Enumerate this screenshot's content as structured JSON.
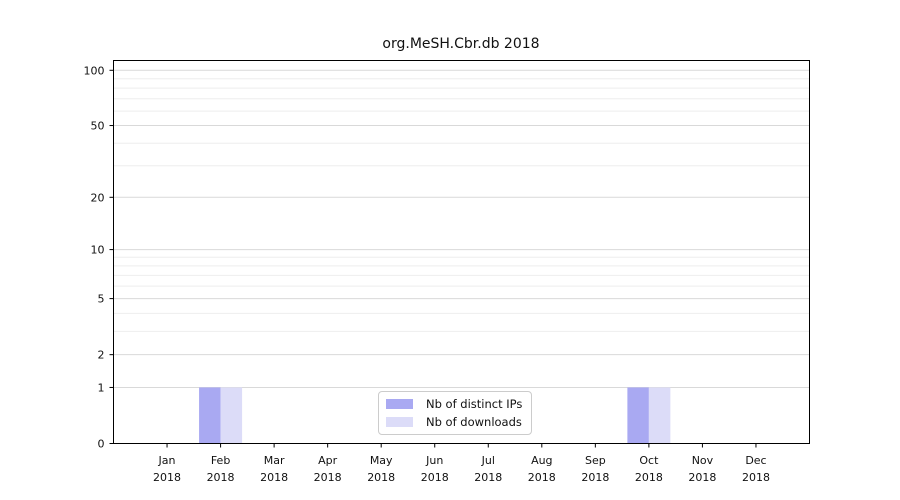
{
  "title": "org.MeSH.Cbr.db 2018",
  "chart_data": {
    "type": "bar",
    "title": "org.MeSH.Cbr.db 2018",
    "categories": [
      "Jan",
      "Feb",
      "Mar",
      "Apr",
      "May",
      "Jun",
      "Jul",
      "Aug",
      "Sep",
      "Oct",
      "Nov",
      "Dec"
    ],
    "category_year": "2018",
    "series": [
      {
        "name": "Nb of distinct IPs",
        "color": "#a9a9f2",
        "values": [
          0,
          1,
          0,
          0,
          0,
          0,
          0,
          0,
          0,
          1,
          0,
          0
        ]
      },
      {
        "name": "Nb of downloads",
        "color": "#dcdcf8",
        "values": [
          0,
          1,
          0,
          0,
          0,
          0,
          0,
          0,
          0,
          1,
          0,
          0
        ]
      }
    ],
    "xlabel": "",
    "ylabel": "",
    "y_scale": "log1p",
    "y_ticks": [
      0,
      1,
      2,
      5,
      10,
      20,
      50,
      100
    ],
    "y_minor_ticks": [
      3,
      4,
      6,
      7,
      8,
      9,
      30,
      40,
      60,
      70,
      80,
      90
    ],
    "ylim": [
      0,
      113
    ],
    "grid": "both",
    "legend_position": "lower center"
  },
  "colors": {
    "bar_distinct_ips": "#a9a9f2",
    "bar_downloads": "#dcdcf8",
    "grid_major": "#d9d9d9",
    "grid_minor": "#eeeeee",
    "spine": "#000000",
    "tick_text": "#111111",
    "legend_border": "#cccccc",
    "background": "#ffffff"
  }
}
